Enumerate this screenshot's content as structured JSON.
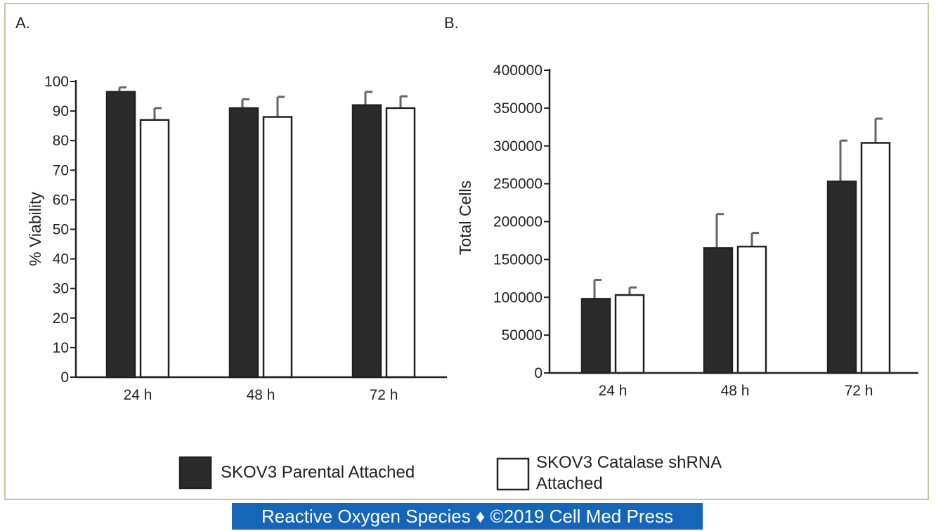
{
  "panel_labels": [
    "A.",
    "B."
  ],
  "chart_data": [
    {
      "type": "bar",
      "categories": [
        "24 h",
        "48 h",
        "72 h"
      ],
      "series": [
        {
          "name": "SKOV3 Parental Attached",
          "values": [
            96.5,
            91,
            92
          ],
          "errors": [
            1.5,
            3,
            4.5
          ],
          "color": "#2b2b2b"
        },
        {
          "name": "SKOV3 Catalase shRNA Attached",
          "values": [
            87,
            88,
            91
          ],
          "errors": [
            4,
            6.8,
            4
          ],
          "color": "#ffffff"
        }
      ],
      "ylabel": "% Viability",
      "ylim": [
        0,
        100
      ],
      "yticks": [
        0,
        10,
        20,
        30,
        40,
        50,
        60,
        70,
        80,
        90,
        100
      ]
    },
    {
      "type": "bar",
      "categories": [
        "24 h",
        "48 h",
        "72 h"
      ],
      "series": [
        {
          "name": "SKOV3 Parental Attached",
          "values": [
            98000,
            165000,
            253000
          ],
          "errors": [
            25000,
            45000,
            54000
          ],
          "color": "#2b2b2b"
        },
        {
          "name": "SKOV3 Catalase shRNA Attached",
          "values": [
            103000,
            167000,
            304000
          ],
          "errors": [
            10000,
            18000,
            32000
          ],
          "color": "#ffffff"
        }
      ],
      "ylabel": "Total Cells",
      "ylim": [
        0,
        400000
      ],
      "yticks": [
        0,
        50000,
        100000,
        150000,
        200000,
        250000,
        300000,
        350000,
        400000
      ]
    }
  ],
  "legend": [
    {
      "label_lines": [
        "SKOV3 Parental Attached"
      ],
      "color": "#2b2b2b"
    },
    {
      "label_lines": [
        "SKOV3 Catalase shRNA",
        "Attached"
      ],
      "color": "#ffffff"
    }
  ],
  "footer": {
    "text": "Reactive Oxygen Species ♦ ©2019 Cell Med Press",
    "background": "#1565b8"
  }
}
